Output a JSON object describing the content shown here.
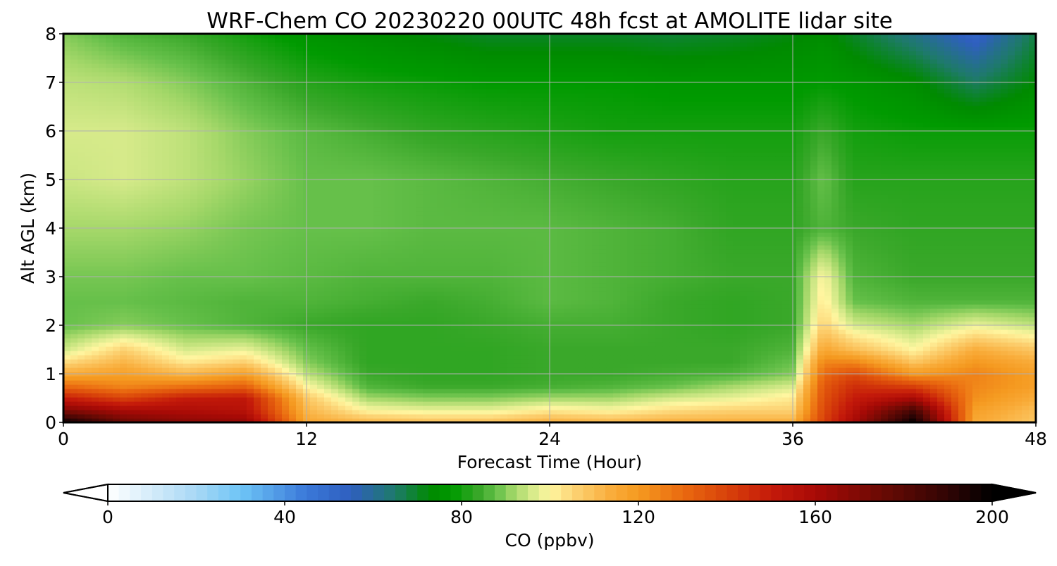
{
  "chart_data": {
    "type": "heatmap",
    "title": "WRF-Chem CO  20230220 00UTC 48h fcst at AMOLITE lidar site",
    "xlabel": "Forecast Time (Hour)",
    "ylabel": "Alt AGL (km)",
    "xlim": [
      0,
      48
    ],
    "ylim": [
      0,
      8
    ],
    "xticks": [
      "0",
      "12",
      "24",
      "36",
      "48"
    ],
    "yticks": [
      "0",
      "1",
      "2",
      "3",
      "4",
      "5",
      "6",
      "7",
      "8"
    ],
    "grid": true,
    "x": [
      0,
      3,
      6,
      9,
      12,
      15,
      18,
      21,
      24,
      27,
      30,
      33,
      36,
      37.5,
      39,
      42,
      45,
      48
    ],
    "y": [
      0,
      0.25,
      0.5,
      0.75,
      1,
      1.25,
      1.5,
      2,
      2.5,
      3,
      4,
      5,
      6,
      7,
      8
    ],
    "z": [
      [
        200,
        175,
        168,
        165,
        116,
        112,
        110,
        110,
        114,
        112,
        114,
        114,
        114,
        140,
        160,
        200,
        115,
        108
      ],
      [
        170,
        160,
        158,
        155,
        112,
        100,
        98,
        98,
        102,
        100,
        104,
        106,
        106,
        138,
        155,
        185,
        118,
        110
      ],
      [
        150,
        140,
        150,
        152,
        108,
        92,
        90,
        90,
        92,
        92,
        96,
        98,
        102,
        136,
        150,
        160,
        122,
        114
      ],
      [
        130,
        124,
        128,
        132,
        100,
        86,
        84,
        84,
        85,
        86,
        88,
        92,
        96,
        134,
        145,
        140,
        124,
        118
      ],
      [
        115,
        118,
        112,
        118,
        94,
        84,
        83,
        83,
        84,
        84,
        85,
        86,
        90,
        130,
        138,
        120,
        125,
        118
      ],
      [
        104,
        112,
        102,
        106,
        90,
        83,
        83,
        83,
        84,
        84,
        84,
        84,
        88,
        124,
        124,
        108,
        120,
        114
      ],
      [
        95,
        106,
        96,
        98,
        88,
        83,
        83,
        83,
        84,
        84,
        84,
        84,
        86,
        116,
        110,
        100,
        114,
        108
      ],
      [
        88,
        90,
        88,
        86,
        84,
        83,
        83,
        84,
        85,
        85,
        84,
        83,
        84,
        106,
        96,
        92,
        98,
        94
      ],
      [
        88,
        88,
        87,
        86,
        86,
        85,
        84,
        85,
        87,
        86,
        84,
        83,
        84,
        102,
        88,
        86,
        86,
        86
      ],
      [
        89,
        89,
        88,
        88,
        87,
        86,
        86,
        86,
        87,
        86,
        85,
        84,
        84,
        100,
        86,
        84,
        84,
        84
      ],
      [
        92,
        92,
        91,
        89,
        88,
        88,
        87,
        87,
        87,
        86,
        85,
        83,
        83,
        86,
        84,
        83,
        83,
        83
      ],
      [
        95,
        96,
        94,
        91,
        88,
        88,
        87,
        86,
        85,
        84,
        83,
        82,
        82,
        88,
        82,
        82,
        82,
        82
      ],
      [
        96,
        96,
        94,
        90,
        87,
        85,
        83,
        82,
        81,
        80,
        80,
        80,
        80,
        84,
        80,
        79,
        79,
        79
      ],
      [
        94,
        93,
        90,
        86,
        82,
        80,
        79,
        78,
        78,
        78,
        77,
        77,
        77,
        78,
        77,
        74,
        66,
        73
      ],
      [
        90,
        86,
        84,
        80,
        76,
        74,
        72,
        70,
        70,
        70,
        69,
        70,
        72,
        74,
        70,
        62,
        52,
        68
      ]
    ],
    "colorbar": {
      "label": "CO  (ppbv)",
      "range": [
        0,
        200
      ],
      "ticks": [
        "0",
        "40",
        "80",
        "120",
        "160",
        "200"
      ],
      "extend": "both"
    },
    "colors": {
      "stops": [
        [
          0,
          "#ffffff"
        ],
        [
          20,
          "#a8d8f5"
        ],
        [
          30,
          "#6ec5f6"
        ],
        [
          45,
          "#3a78d8"
        ],
        [
          55,
          "#2f5fbf"
        ],
        [
          65,
          "#1e7a6a"
        ],
        [
          73,
          "#008a00"
        ],
        [
          78,
          "#009a00"
        ],
        [
          84,
          "#3aa82a"
        ],
        [
          88,
          "#66c04a"
        ],
        [
          92,
          "#a6d86a"
        ],
        [
          96,
          "#d6ea8a"
        ],
        [
          100,
          "#fff6a0"
        ],
        [
          106,
          "#fcd070"
        ],
        [
          114,
          "#f9ac3a"
        ],
        [
          120,
          "#f59a20"
        ],
        [
          130,
          "#ea6a10"
        ],
        [
          140,
          "#d8420a"
        ],
        [
          150,
          "#c41a0a"
        ],
        [
          160,
          "#a80a06"
        ],
        [
          175,
          "#6a0a04"
        ],
        [
          190,
          "#300404"
        ],
        [
          200,
          "#000000"
        ]
      ],
      "axis": "#000000",
      "grid": "#b0b0b0"
    }
  }
}
